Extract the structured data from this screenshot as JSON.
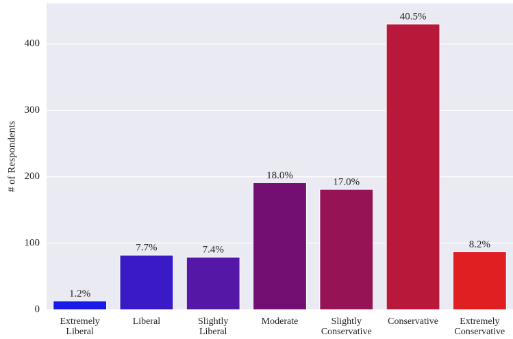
{
  "chart_data": {
    "type": "bar",
    "ylabel": "# of Respondents",
    "categories": [
      "Extremely\nLiberal",
      "Liberal",
      "Slightly\nLiberal",
      "Moderate",
      "Slightly\nConservative",
      "Conservative",
      "Extremely\nConservative"
    ],
    "values": [
      13,
      82,
      79,
      191,
      181,
      430,
      87
    ],
    "bar_labels": [
      "1.2%",
      "7.7%",
      "7.4%",
      "18.0%",
      "17.0%",
      "40.5%",
      "8.2%"
    ],
    "colors": [
      "#1a1ae8",
      "#3a1ac6",
      "#5517a6",
      "#730f72",
      "#961456",
      "#b8193a",
      "#e01f22"
    ],
    "ylim": [
      0,
      461
    ],
    "yticks": [
      0,
      100,
      200,
      300,
      400
    ],
    "grid": true
  }
}
